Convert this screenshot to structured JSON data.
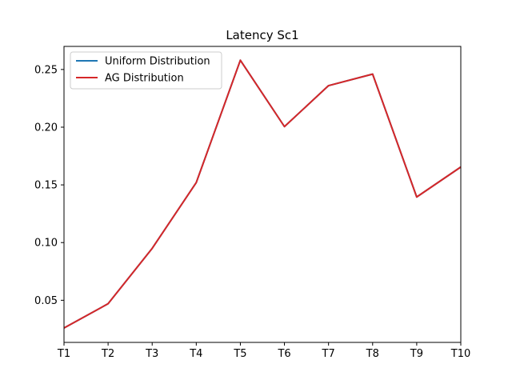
{
  "chart_data": {
    "type": "line",
    "title": "Latency Sc1",
    "xlabel": "",
    "ylabel": "",
    "categories": [
      "T1",
      "T2",
      "T3",
      "T4",
      "T5",
      "T6",
      "T7",
      "T8",
      "T9",
      "T10"
    ],
    "ylim": [
      0.0135,
      0.27
    ],
    "yticks": [
      "0.05",
      "0.10",
      "0.15",
      "0.20",
      "0.25"
    ],
    "ytick_values": [
      0.05,
      0.1,
      0.15,
      0.2,
      0.25
    ],
    "grid": false,
    "legend_position": "top-left",
    "series": [
      {
        "name": "Uniform Distribution",
        "color": "#1f77b4",
        "values": [
          0.026,
          0.047,
          0.095,
          0.152,
          0.258,
          0.2005,
          0.236,
          0.246,
          0.1395,
          0.1655
        ]
      },
      {
        "name": "AG Distribution",
        "color": "#d62728",
        "values": [
          0.026,
          0.047,
          0.095,
          0.152,
          0.258,
          0.2005,
          0.236,
          0.246,
          0.1395,
          0.1655
        ]
      }
    ]
  }
}
